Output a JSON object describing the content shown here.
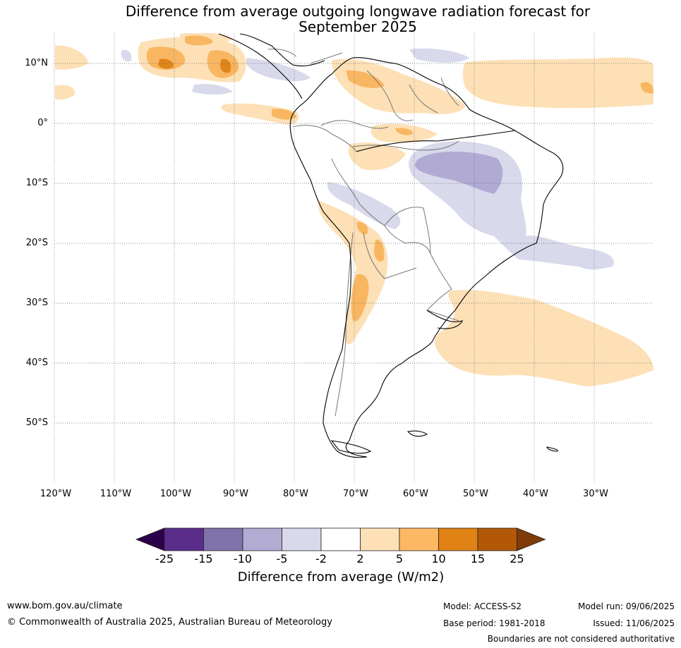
{
  "title": {
    "line1": "Difference from average outgoing longwave radiation forecast for",
    "line2": "September 2025"
  },
  "map": {
    "lat_labels": [
      "10°N",
      "0°",
      "10°S",
      "20°S",
      "30°S",
      "40°S",
      "50°S"
    ],
    "lon_labels": [
      "120°W",
      "110°W",
      "100°W",
      "90°W",
      "80°W",
      "70°W",
      "60°W",
      "50°W",
      "40°W",
      "30°W"
    ],
    "gridlines": true,
    "colors": {
      "land_outline": "#000000",
      "border": "#777777",
      "gridline": "#666666",
      "anom_pos_2_5": "#fde0b6",
      "anom_pos_5_10": "#f9b661",
      "anom_pos_10_15": "#e08519",
      "anom_neg_m5_m2": "#d8d9eb",
      "anom_neg_m10_m5": "#b1aad3"
    }
  },
  "colorbar": {
    "ticks": [
      "-25",
      "-15",
      "-10",
      "-5",
      "-2",
      "2",
      "5",
      "10",
      "15",
      "25"
    ],
    "colors": [
      "#2d004b",
      "#5a2d8a",
      "#8073ac",
      "#b2abd2",
      "#d8daeb",
      "#ffffff",
      "#fee0b6",
      "#fdb863",
      "#e08214",
      "#b35806",
      "#7f3b08"
    ],
    "label": "Difference from average (W/m2)"
  },
  "footer": {
    "website": "www.bom.gov.au/climate",
    "copyright": "© Commonwealth of Australia 2025, Australian Bureau of Meteorology",
    "model": "Model: ACCESS-S2",
    "base_period": "Base period: 1981-2018",
    "model_run": "Model run: 09/06/2025",
    "issued": "Issued: 11/06/2025",
    "disclaimer": "Boundaries are not considered authoritative"
  }
}
